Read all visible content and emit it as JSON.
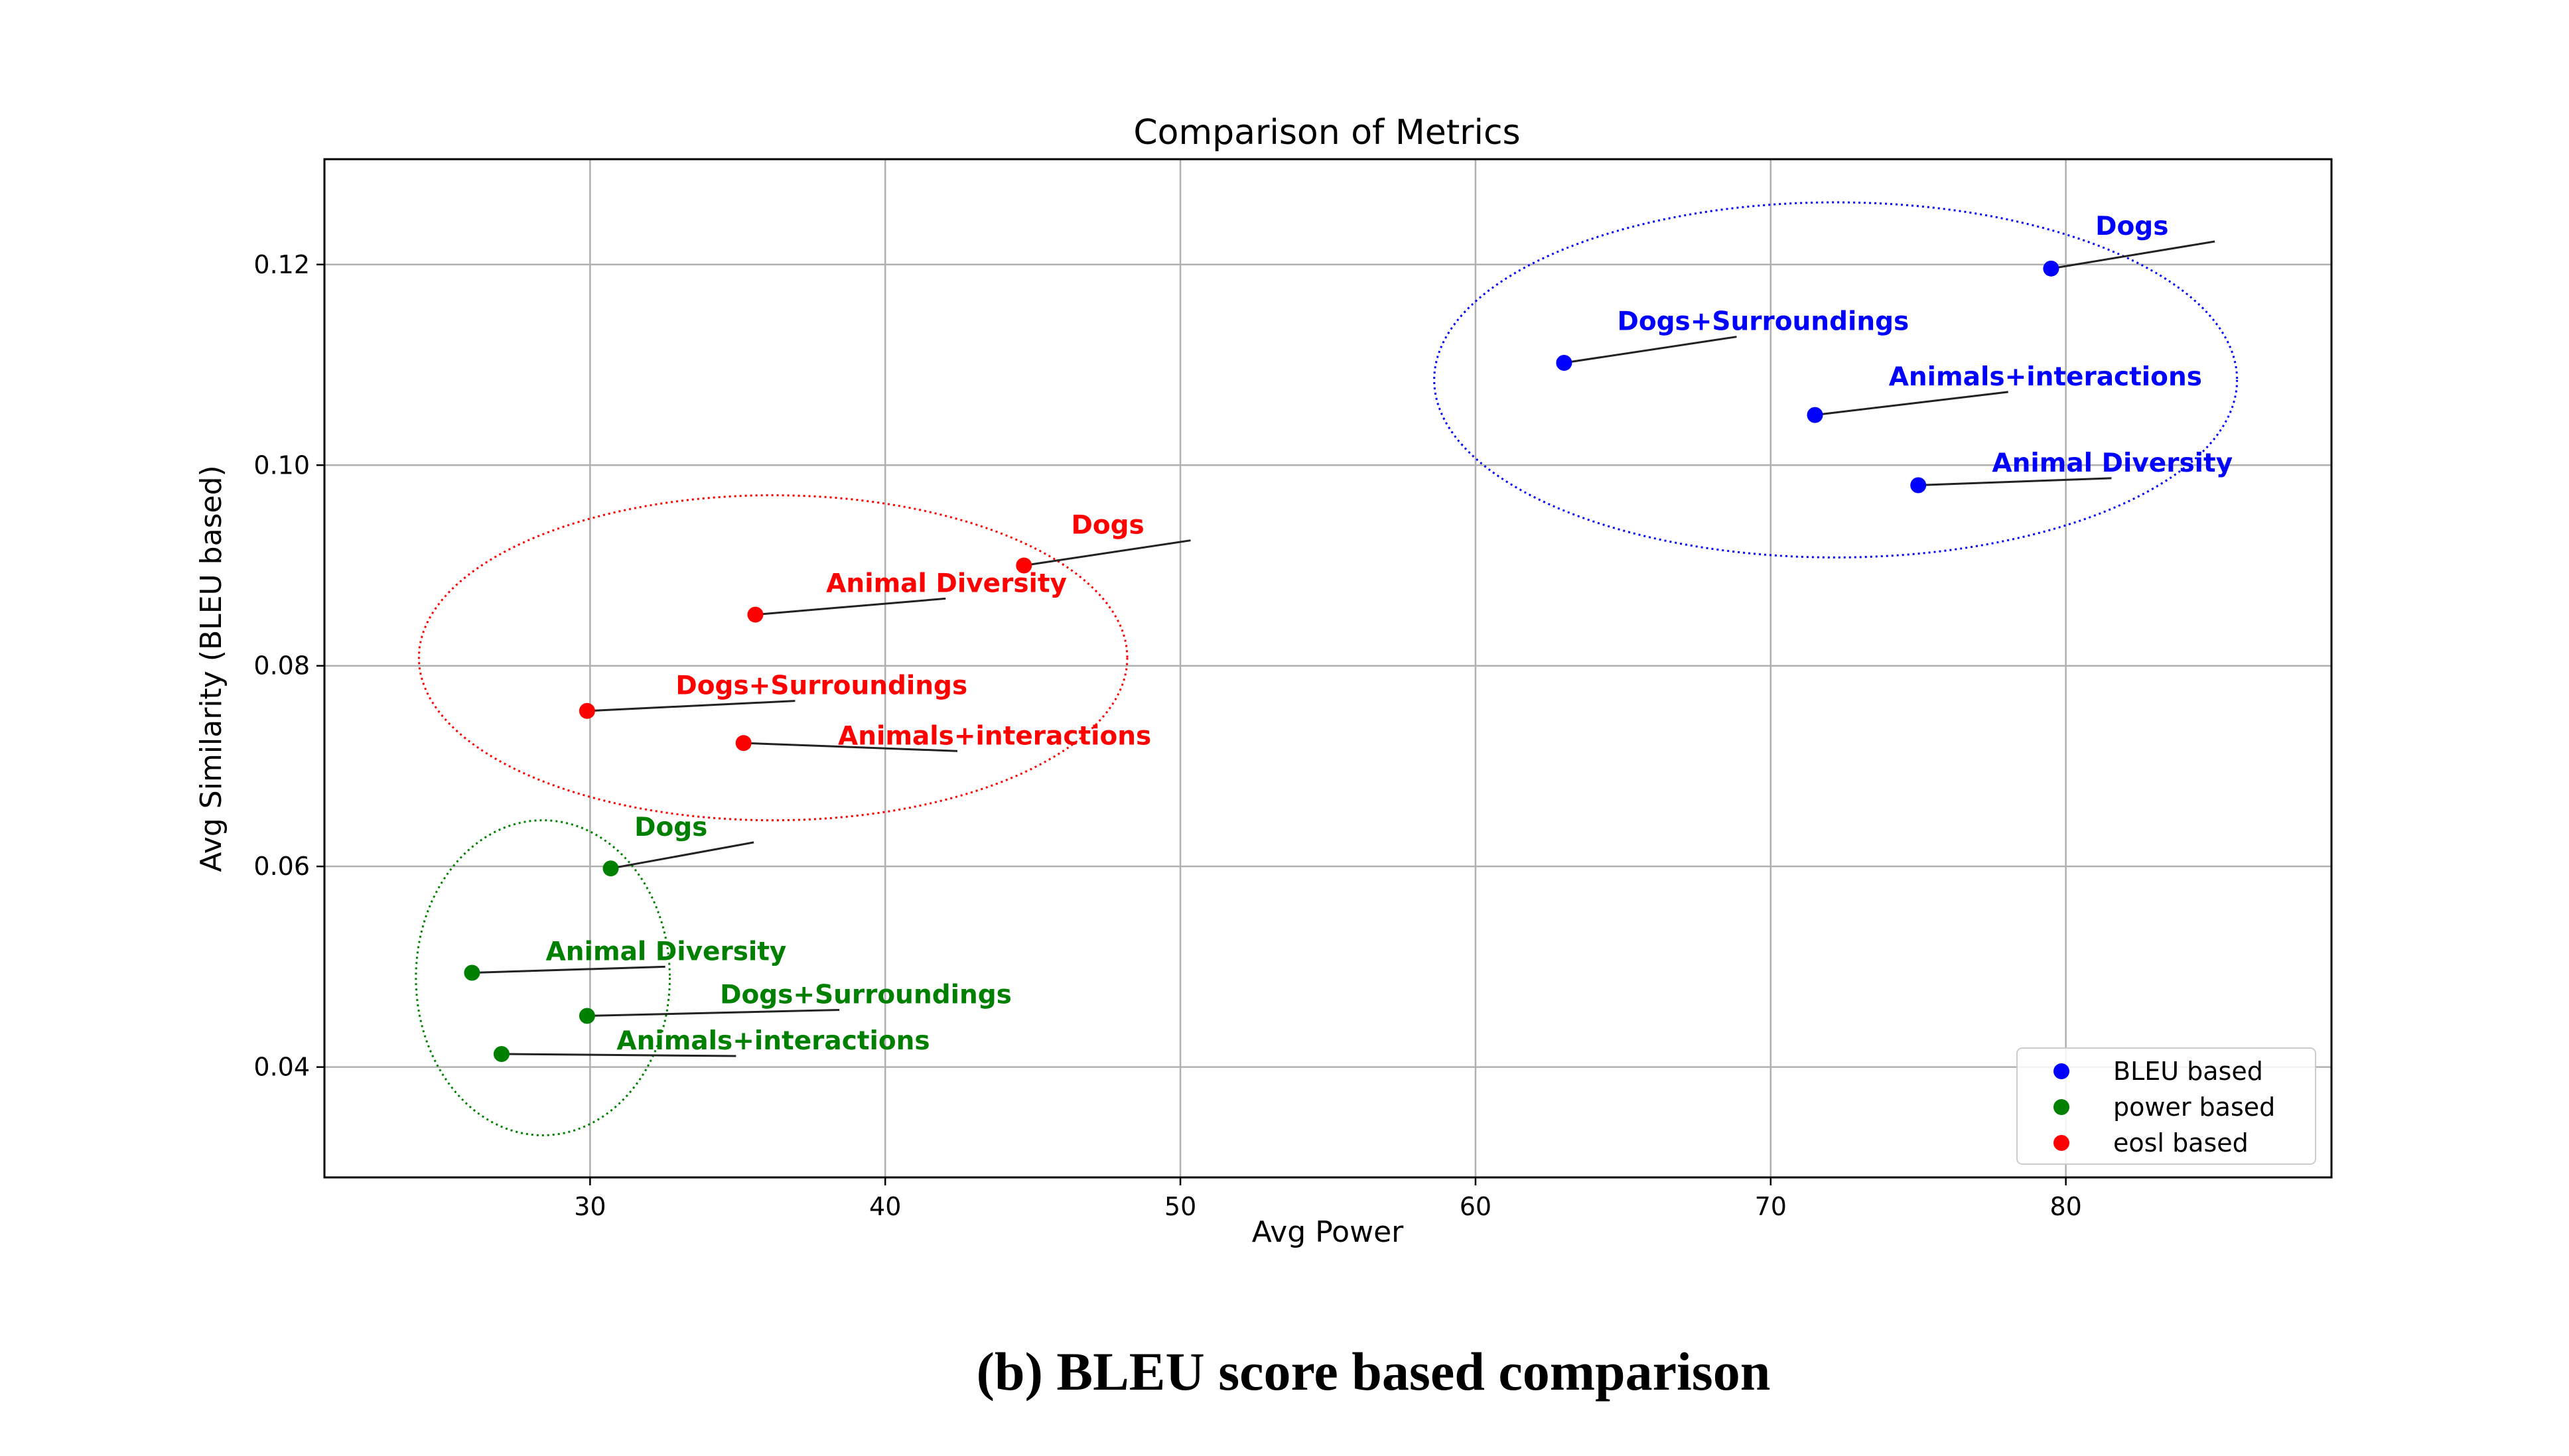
{
  "chart_data": {
    "type": "scatter",
    "title": "Comparison of Metrics",
    "xlabel": "Avg Power",
    "ylabel": "Avg Similarity (BLEU based)",
    "xlim": [
      21,
      89
    ],
    "ylim": [
      0.029,
      0.1305
    ],
    "x_ticks": [
      30,
      40,
      50,
      60,
      70,
      80
    ],
    "y_ticks": [
      0.04,
      0.06,
      0.08,
      0.1,
      0.12
    ],
    "y_tick_labels": [
      "0.04",
      "0.06",
      "0.08",
      "0.10",
      "0.12"
    ],
    "grid": true,
    "legend_position": "bottom-right",
    "series": [
      {
        "name": "BLEU based",
        "color": "#0000ff",
        "points": [
          {
            "label": "Dogs",
            "x": 79.5,
            "y": 0.1196,
            "label_x": 81.0,
            "label_y": 0.1223
          },
          {
            "label": "Dogs+Surroundings",
            "x": 63.0,
            "y": 0.1102,
            "label_x": 64.8,
            "label_y": 0.1128
          },
          {
            "label": "Animals+interactions",
            "x": 71.5,
            "y": 0.105,
            "label_x": 74.0,
            "label_y": 0.1073
          },
          {
            "label": "Animal Diversity",
            "x": 75.0,
            "y": 0.098,
            "label_x": 77.5,
            "label_y": 0.0987
          }
        ],
        "cluster": {
          "cx": 72.2,
          "cy": 0.1085,
          "rx": 13.6,
          "ry": 0.0177
        }
      },
      {
        "name": "power based",
        "color": "#008000",
        "points": [
          {
            "label": "Dogs",
            "x": 30.7,
            "y": 0.0598,
            "label_x": 31.5,
            "label_y": 0.0624
          },
          {
            "label": "Animal Diversity",
            "x": 26.0,
            "y": 0.0494,
            "label_x": 28.5,
            "label_y": 0.05
          },
          {
            "label": "Dogs+Surroundings",
            "x": 29.9,
            "y": 0.0451,
            "label_x": 34.4,
            "label_y": 0.0457
          },
          {
            "label": "Animals+interactions",
            "x": 27.0,
            "y": 0.0413,
            "label_x": 30.9,
            "label_y": 0.0411
          }
        ],
        "cluster": {
          "cx": 28.4,
          "cy": 0.0489,
          "rx": 4.3,
          "ry": 0.0157
        }
      },
      {
        "name": "eosl based",
        "color": "#ff0000",
        "points": [
          {
            "label": "Dogs",
            "x": 44.7,
            "y": 0.09,
            "label_x": 46.3,
            "label_y": 0.0925
          },
          {
            "label": "Animal Diversity",
            "x": 35.6,
            "y": 0.0851,
            "label_x": 38.0,
            "label_y": 0.0867
          },
          {
            "label": "Dogs+Surroundings",
            "x": 29.9,
            "y": 0.0755,
            "label_x": 32.9,
            "label_y": 0.0765
          },
          {
            "label": "Animals+interactions",
            "x": 35.2,
            "y": 0.0723,
            "label_x": 38.4,
            "label_y": 0.0715
          }
        ],
        "cluster": {
          "cx": 36.2,
          "cy": 0.0808,
          "rx": 12.0,
          "ry": 0.0162
        }
      }
    ]
  },
  "caption": "(b) BLEU score based comparison"
}
